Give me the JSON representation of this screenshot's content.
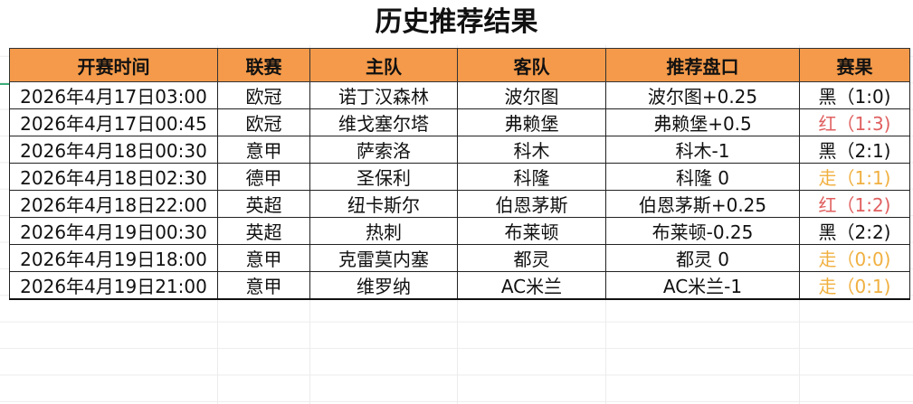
{
  "title": "历史推荐结果",
  "table": {
    "headers": [
      "开赛时间",
      "联赛",
      "主队",
      "客队",
      "推荐盘口",
      "赛果"
    ],
    "rows": [
      {
        "time": "2026年4月17日03:00",
        "league": "欧冠",
        "home": "诺丁汉森林",
        "away": "波尔图",
        "pick": "波尔图+0.25",
        "result": "黑（1:0)",
        "status": "black"
      },
      {
        "time": "2026年4月17日00:45",
        "league": "欧冠",
        "home": "维戈塞尔塔",
        "away": "弗赖堡",
        "pick": "弗赖堡+0.5",
        "result": "红（1:3)",
        "status": "red"
      },
      {
        "time": "2026年4月18日00:30",
        "league": "意甲",
        "home": "萨索洛",
        "away": "科木",
        "pick": "科木-1",
        "result": "黑（2:1)",
        "status": "black"
      },
      {
        "time": "2026年4月18日02:30",
        "league": "德甲",
        "home": "圣保利",
        "away": "科隆",
        "pick": "科隆 0",
        "result": "走（1:1)",
        "status": "push"
      },
      {
        "time": "2026年4月18日22:00",
        "league": "英超",
        "home": "纽卡斯尔",
        "away": "伯恩茅斯",
        "pick": "伯恩茅斯+0.25",
        "result": "红（1:2)",
        "status": "red"
      },
      {
        "time": "2026年4月19日00:30",
        "league": "英超",
        "home": "热刺",
        "away": "布莱顿",
        "pick": "布莱顿-0.25",
        "result": "黑（2:2)",
        "status": "black"
      },
      {
        "time": "2026年4月19日18:00",
        "league": "意甲",
        "home": "克雷莫内塞",
        "away": "都灵",
        "pick": "都灵 0",
        "result": "走（0:0)",
        "status": "push"
      },
      {
        "time": "2026年4月19日21:00",
        "league": "意甲",
        "home": "维罗纳",
        "away": "AC米兰",
        "pick": "AC米兰-1",
        "result": "走（0:1)",
        "status": "push"
      }
    ]
  },
  "colors": {
    "header_bg": "#f49a4a",
    "red": "#e06060",
    "push": "#f0b040",
    "black": "#111111"
  }
}
